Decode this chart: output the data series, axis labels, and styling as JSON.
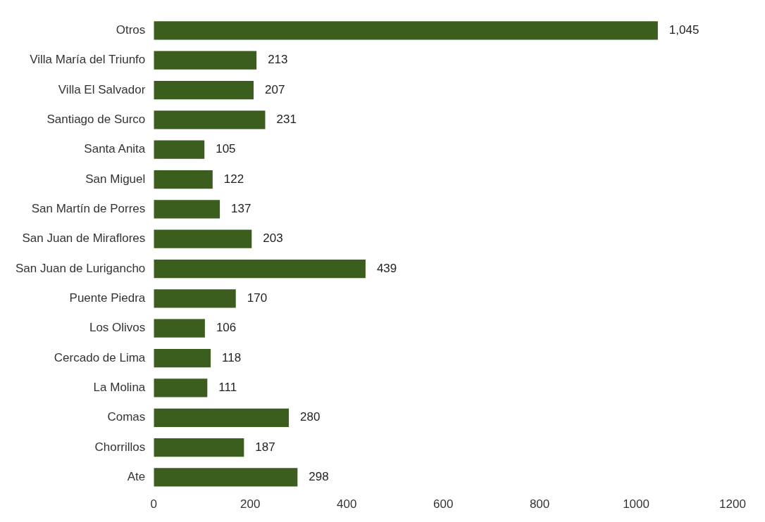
{
  "chart_data": {
    "type": "bar",
    "orientation": "horizontal",
    "categories": [
      "Otros",
      "Villa María del Triunfo",
      "Villa El Salvador",
      "Santiago de Surco",
      "Santa Anita",
      "San Miguel",
      "San Martín de Porres",
      "San Juan de Miraflores",
      "San Juan de Lurigancho",
      "Puente Piedra",
      "Los Olivos",
      "Cercado de Lima",
      "La Molina",
      "Comas",
      "Chorrillos",
      "Ate"
    ],
    "values": [
      1045,
      213,
      207,
      231,
      105,
      122,
      137,
      203,
      439,
      170,
      106,
      118,
      111,
      280,
      187,
      298
    ],
    "value_labels": [
      "1,045",
      "213",
      "207",
      "231",
      "105",
      "122",
      "137",
      "203",
      "439",
      "170",
      "106",
      "118",
      "111",
      "280",
      "187",
      "298"
    ],
    "color": "#3b5e1f",
    "xlim": [
      0,
      1200
    ],
    "xticks": [
      0,
      200,
      400,
      600,
      800,
      1000,
      1200
    ]
  }
}
